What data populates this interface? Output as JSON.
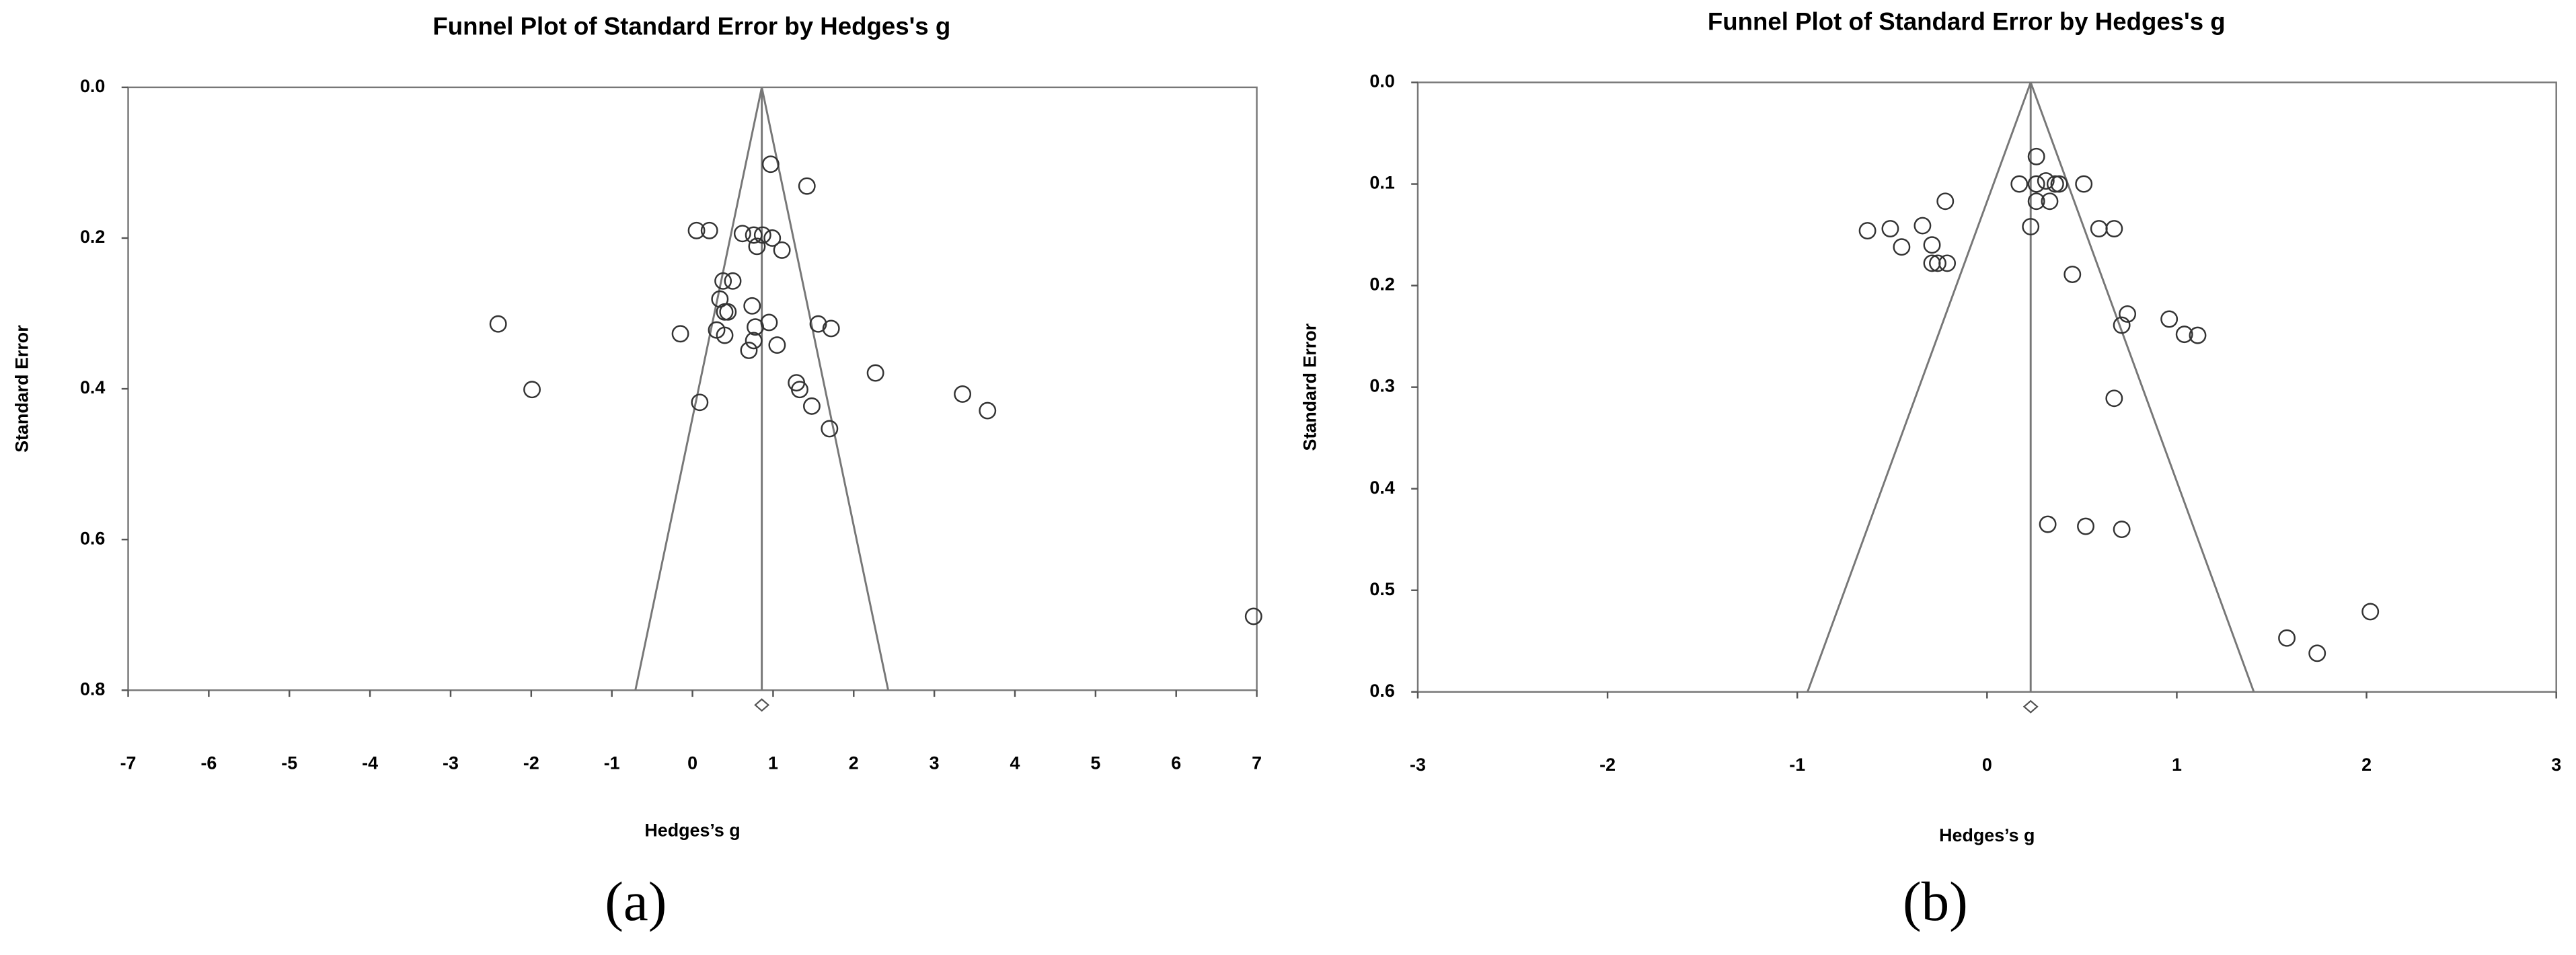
{
  "chart_data": [
    {
      "type": "scatter",
      "title": "Funnel Plot of Standard Error by Hedges's g",
      "xlabel": "Hedges’s g",
      "ylabel": "Standard Error",
      "caption": "(a)",
      "x": [
        0.97,
        1.42,
        0.05,
        0.21,
        0.62,
        0.76,
        0.87,
        0.99,
        0.8,
        1.11,
        0.38,
        0.5,
        0.34,
        0.74,
        0.4,
        0.44,
        -2.41,
        0.95,
        1.56,
        1.72,
        0.78,
        -0.15,
        0.3,
        0.4,
        0.76,
        1.05,
        0.7,
        2.27,
        1.29,
        1.33,
        -1.99,
        3.35,
        0.09,
        1.48,
        3.66,
        1.7,
        6.96
      ],
      "y": [
        0.102,
        0.131,
        0.19,
        0.19,
        0.194,
        0.196,
        0.196,
        0.2,
        0.211,
        0.216,
        0.257,
        0.257,
        0.281,
        0.29,
        0.298,
        0.298,
        0.314,
        0.312,
        0.314,
        0.32,
        0.318,
        0.327,
        0.322,
        0.329,
        0.336,
        0.342,
        0.349,
        0.379,
        0.392,
        0.401,
        0.401,
        0.407,
        0.418,
        0.423,
        0.429,
        0.453,
        0.702
      ],
      "pooled_estimate": 0.86,
      "funnel_z": 1.96,
      "y_inverted": true,
      "xlim": [
        -7,
        7
      ],
      "xticks": [
        -7,
        -6,
        -5,
        -4,
        -3,
        -2,
        -1,
        0,
        1,
        2,
        3,
        4,
        5,
        6,
        7
      ],
      "ylim": [
        0,
        0.8
      ],
      "yticks": [
        {
          "value": 0,
          "label": "0.0"
        },
        0.2,
        0.4,
        0.6,
        0.8
      ],
      "color": "#333333"
    },
    {
      "type": "scatter",
      "title": "Funnel Plot of Standard Error by Hedges's g",
      "xlabel": "Hedges’s g",
      "ylabel": "Standard Error",
      "caption": "(b)",
      "x": [
        0.26,
        0.17,
        0.26,
        0.31,
        0.36,
        0.38,
        0.51,
        0.26,
        0.33,
        -0.22,
        -0.63,
        -0.51,
        -0.34,
        0.23,
        0.59,
        0.67,
        -0.45,
        -0.29,
        -0.29,
        -0.26,
        -0.21,
        0.45,
        0.74,
        0.71,
        0.96,
        1.04,
        1.11,
        0.67,
        0.32,
        0.52,
        0.71,
        1.58,
        1.74,
        2.02
      ],
      "y": [
        0.073,
        0.1,
        0.1,
        0.097,
        0.1,
        0.1,
        0.1,
        0.117,
        0.117,
        0.117,
        0.146,
        0.144,
        0.141,
        0.142,
        0.144,
        0.144,
        0.162,
        0.16,
        0.178,
        0.178,
        0.178,
        0.189,
        0.228,
        0.239,
        0.233,
        0.248,
        0.249,
        0.311,
        0.435,
        0.437,
        0.44,
        0.547,
        0.562,
        0.521
      ],
      "pooled_estimate": 0.23,
      "funnel_z": 1.96,
      "y_inverted": true,
      "xlim": [
        -3,
        3
      ],
      "xticks": [
        -3,
        -2,
        -1,
        0,
        1,
        2,
        3
      ],
      "ylim": [
        0,
        0.6
      ],
      "yticks": [
        {
          "value": 0,
          "label": "0.0"
        },
        0.1,
        0.2,
        0.3,
        0.4,
        0.5,
        0.6
      ],
      "color": "#333333"
    }
  ]
}
